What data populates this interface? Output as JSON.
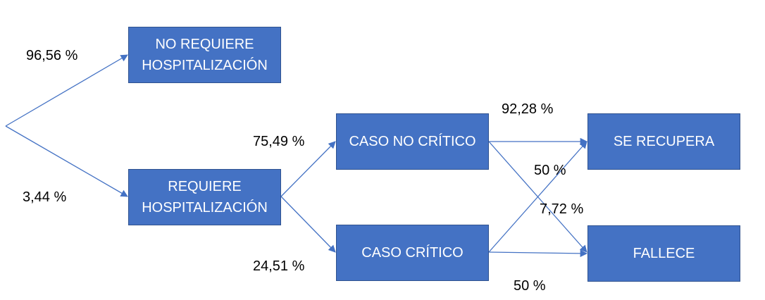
{
  "nodes": {
    "no_requiere": {
      "line1": "NO REQUIERE",
      "line2": "HOSPITALIZACIÓN"
    },
    "requiere": {
      "line1": "REQUIERE",
      "line2": "HOSPITALIZACIÓN"
    },
    "caso_no_critico": {
      "label": "CASO NO CRÍTICO"
    },
    "caso_critico": {
      "label": "CASO CRÍTICO"
    },
    "se_recupera": {
      "label": "SE RECUPERA"
    },
    "fallece": {
      "label": "FALLECE"
    }
  },
  "probabilities": {
    "no_requiere": "96,56 %",
    "requiere": "3,44 %",
    "no_critico": "75,49 %",
    "critico": "24,51 %",
    "no_critico_recupera": "92,28 %",
    "no_critico_fallece": "7,72 %",
    "critico_recupera": "50 %",
    "critico_fallece": "50 %"
  },
  "colors": {
    "node_fill": "#4472c4",
    "node_border": "#2f528f",
    "connector": "#4472c4",
    "node_text": "#ffffff"
  }
}
